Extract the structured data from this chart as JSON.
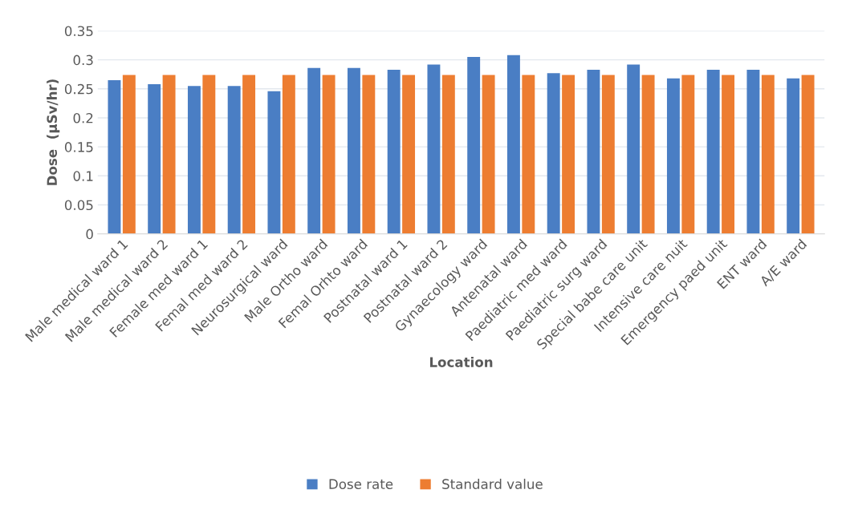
{
  "chart_data": {
    "type": "bar",
    "xlabel": "Location",
    "ylabel": "Dose  (µSv/hr)",
    "categories": [
      "Male medical ward 1",
      "Male medical ward 2",
      "Female med ward 1",
      "Femal med ward 2",
      "Neurosurgical ward",
      "Male Ortho ward",
      "Femal Orhto ward",
      "Postnatal ward 1",
      "Postnatal ward 2",
      "Gynaecology ward",
      "Antenatal ward",
      "Paediatric med ward",
      "Paediatric surg ward",
      "Special babe care unit",
      "Intensive care nuit",
      "Emergency paed unit",
      "ENT ward",
      "A/E ward"
    ],
    "series": [
      {
        "name": "Dose rate",
        "color": "#4a7ec4",
        "values": [
          0.265,
          0.258,
          0.255,
          0.255,
          0.246,
          0.286,
          0.286,
          0.283,
          0.292,
          0.305,
          0.308,
          0.277,
          0.283,
          0.292,
          0.268,
          0.283,
          0.283,
          0.268
        ]
      },
      {
        "name": "Standard value",
        "color": "#ed7d31",
        "values": [
          0.274,
          0.274,
          0.274,
          0.274,
          0.274,
          0.274,
          0.274,
          0.274,
          0.274,
          0.274,
          0.274,
          0.274,
          0.274,
          0.274,
          0.274,
          0.274,
          0.274,
          0.274
        ]
      }
    ],
    "ylim": [
      0,
      0.35
    ],
    "yticks": [
      0,
      0.05,
      0.1,
      0.15,
      0.2,
      0.25,
      0.3,
      0.35
    ],
    "grid": "y",
    "legend": "bottom"
  }
}
